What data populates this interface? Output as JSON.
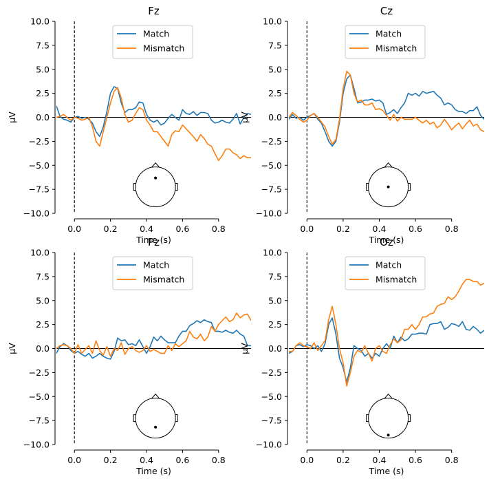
{
  "figure": {
    "name": "ERP comparison: Match vs Mismatch"
  },
  "colors": {
    "match": "#1f77b4",
    "mismatch": "#ff7f0e",
    "axis": "#000000",
    "legend_border": "#cccccc"
  },
  "chart_data": [
    {
      "type": "line",
      "title": "Fz",
      "xlabel": "Time (s)",
      "ylabel": "µV",
      "xlim": [
        -0.1,
        0.98
      ],
      "ylim": [
        -10,
        10
      ],
      "xticks": [
        0.0,
        0.2,
        0.4,
        0.6,
        0.8
      ],
      "xtick_labels": [
        "0.0",
        "0.2",
        "0.4",
        "0.6",
        "0.8"
      ],
      "yticks": [
        10,
        7.5,
        5,
        2.5,
        0,
        -2.5,
        -5,
        -7.5,
        -10
      ],
      "ytick_labels": [
        "10.0",
        "7.5",
        "5.0",
        "2.5",
        "0.0",
        "−2.5",
        "−5.0",
        "−7.5",
        "−10.0"
      ],
      "legend": {
        "placement": "top-center"
      },
      "sensor": {
        "x": 0.0,
        "y": 0.45
      },
      "x": [
        -0.1,
        -0.08,
        -0.06,
        -0.04,
        -0.02,
        0.0,
        0.02,
        0.04,
        0.06,
        0.08,
        0.1,
        0.12,
        0.14,
        0.16,
        0.18,
        0.2,
        0.22,
        0.24,
        0.26,
        0.28,
        0.3,
        0.32,
        0.34,
        0.36,
        0.38,
        0.4,
        0.42,
        0.44,
        0.46,
        0.48,
        0.5,
        0.52,
        0.54,
        0.56,
        0.58,
        0.6,
        0.62,
        0.64,
        0.66,
        0.68,
        0.7,
        0.72,
        0.74,
        0.76,
        0.78,
        0.8,
        0.82,
        0.84,
        0.86,
        0.88,
        0.9,
        0.92,
        0.94,
        0.96,
        0.98
      ],
      "series": [
        {
          "name": "Match",
          "values": [
            1.2,
            0.1,
            -0.2,
            -0.3,
            -0.5,
            0.0,
            0.1,
            -0.1,
            0.0,
            -0.2,
            -0.6,
            -1.5,
            -2.0,
            -1.0,
            0.6,
            2.5,
            3.2,
            3.0,
            1.5,
            0.5,
            0.8,
            0.8,
            1.0,
            1.6,
            1.5,
            0.3,
            -0.3,
            -0.5,
            -0.3,
            -0.8,
            -0.6,
            -0.1,
            0.3,
            0.0,
            -0.3,
            0.8,
            0.4,
            0.3,
            0.6,
            0.2,
            0.5,
            0.5,
            0.4,
            -0.3,
            -0.6,
            -0.5,
            -0.3,
            -0.5,
            -0.6,
            -0.2,
            0.4,
            -0.7,
            0.0,
            0.4,
            0.3
          ]
        },
        {
          "name": "Mismatch",
          "values": [
            0.0,
            0.1,
            0.3,
            0.0,
            -0.3,
            0.0,
            -0.1,
            -0.3,
            -0.2,
            0.0,
            -1.0,
            -2.5,
            -3.0,
            -1.5,
            0.0,
            1.5,
            2.7,
            3.1,
            2.0,
            0.3,
            -0.5,
            -0.3,
            0.4,
            1.0,
            0.8,
            -0.3,
            -0.8,
            -1.5,
            -1.5,
            -2.0,
            -2.5,
            -3.0,
            -1.8,
            -1.4,
            -1.5,
            -0.8,
            -1.2,
            -1.6,
            -2.0,
            -2.5,
            -1.8,
            -2.2,
            -2.8,
            -3.0,
            -3.8,
            -4.5,
            -4.0,
            -3.3,
            -3.3,
            -3.7,
            -3.9,
            -4.3,
            -4.0,
            -4.2,
            -4.2
          ]
        }
      ]
    },
    {
      "type": "line",
      "title": "Cz",
      "xlabel": "Time (s)",
      "ylabel": "µV",
      "xlim": [
        -0.1,
        0.98
      ],
      "ylim": [
        -10,
        10
      ],
      "xticks": [
        0.0,
        0.2,
        0.4,
        0.6,
        0.8
      ],
      "xtick_labels": [
        "0.0",
        "0.2",
        "0.4",
        "0.6",
        "0.8"
      ],
      "yticks": [
        10,
        7.5,
        5,
        2.5,
        0,
        -2.5,
        -5,
        -7.5,
        -10
      ],
      "ytick_labels": [
        "10.0",
        "7.5",
        "5.0",
        "2.5",
        "0.0",
        "−2.5",
        "−5.0",
        "−7.5",
        "−10.0"
      ],
      "legend": {
        "placement": "top-center"
      },
      "sensor": {
        "x": 0.0,
        "y": 0.0
      },
      "x": [
        -0.1,
        -0.08,
        -0.06,
        -0.04,
        -0.02,
        0.0,
        0.02,
        0.04,
        0.06,
        0.08,
        0.1,
        0.12,
        0.14,
        0.16,
        0.18,
        0.2,
        0.22,
        0.24,
        0.26,
        0.28,
        0.3,
        0.32,
        0.34,
        0.36,
        0.38,
        0.4,
        0.42,
        0.44,
        0.46,
        0.48,
        0.5,
        0.52,
        0.54,
        0.56,
        0.58,
        0.6,
        0.62,
        0.64,
        0.66,
        0.68,
        0.7,
        0.72,
        0.74,
        0.76,
        0.78,
        0.8,
        0.82,
        0.84,
        0.86,
        0.88,
        0.9,
        0.92,
        0.94,
        0.96,
        0.98
      ],
      "series": [
        {
          "name": "Match",
          "values": [
            -0.2,
            0.3,
            -0.1,
            0.0,
            -0.3,
            0.0,
            0.2,
            0.4,
            -0.2,
            -0.6,
            -1.5,
            -2.5,
            -3.0,
            -2.5,
            -0.5,
            2.5,
            4.0,
            4.4,
            3.0,
            1.5,
            1.6,
            1.8,
            1.8,
            1.9,
            1.7,
            1.8,
            1.5,
            0.3,
            0.5,
            0.8,
            0.4,
            1.0,
            1.5,
            2.5,
            2.3,
            2.5,
            2.2,
            2.7,
            2.5,
            2.6,
            2.7,
            2.3,
            2.0,
            1.3,
            1.5,
            1.3,
            0.8,
            0.6,
            0.6,
            0.4,
            0.7,
            0.7,
            1.1,
            0.2,
            -0.2
          ]
        },
        {
          "name": "Mismatch",
          "values": [
            0.0,
            0.5,
            0.2,
            -0.2,
            -0.5,
            -0.3,
            0.2,
            0.4,
            0.0,
            -0.5,
            -1.0,
            -2.0,
            -2.8,
            -2.3,
            -0.2,
            3.0,
            4.8,
            4.4,
            2.5,
            1.6,
            1.8,
            1.3,
            1.3,
            1.5,
            0.8,
            0.9,
            0.7,
            0.2,
            -0.3,
            0.3,
            -0.4,
            0.0,
            -0.2,
            -0.2,
            -0.2,
            0.0,
            -0.3,
            -0.6,
            -0.3,
            -0.7,
            -0.5,
            -1.1,
            -0.8,
            -0.2,
            -0.7,
            -1.3,
            -0.9,
            -0.6,
            -1.2,
            -0.7,
            -0.3,
            -0.9,
            -0.7,
            -1.3,
            -1.5
          ]
        }
      ]
    },
    {
      "type": "line",
      "title": "Pz",
      "xlabel": "Time (s)",
      "ylabel": "µV",
      "xlim": [
        -0.1,
        0.98
      ],
      "ylim": [
        -10,
        10
      ],
      "xticks": [
        0.0,
        0.2,
        0.4,
        0.6,
        0.8
      ],
      "xtick_labels": [
        "0.0",
        "0.2",
        "0.4",
        "0.6",
        "0.8"
      ],
      "yticks": [
        10,
        7.5,
        5,
        2.5,
        0,
        -2.5,
        -5,
        -7.5,
        -10
      ],
      "ytick_labels": [
        "10.0",
        "7.5",
        "5.0",
        "2.5",
        "0.0",
        "−2.5",
        "−5.0",
        "−7.5",
        "−10.0"
      ],
      "legend": {
        "placement": "top-center"
      },
      "sensor": {
        "x": 0.0,
        "y": -0.45
      },
      "x": [
        -0.1,
        -0.08,
        -0.06,
        -0.04,
        -0.02,
        0.0,
        0.02,
        0.04,
        0.06,
        0.08,
        0.1,
        0.12,
        0.14,
        0.16,
        0.18,
        0.2,
        0.22,
        0.24,
        0.26,
        0.28,
        0.3,
        0.32,
        0.34,
        0.36,
        0.38,
        0.4,
        0.42,
        0.44,
        0.46,
        0.48,
        0.5,
        0.52,
        0.54,
        0.56,
        0.58,
        0.6,
        0.62,
        0.64,
        0.66,
        0.68,
        0.7,
        0.72,
        0.74,
        0.76,
        0.78,
        0.8,
        0.82,
        0.84,
        0.86,
        0.88,
        0.9,
        0.92,
        0.94,
        0.96,
        0.98
      ],
      "series": [
        {
          "name": "Match",
          "values": [
            -0.5,
            0.2,
            0.5,
            0.3,
            -0.2,
            -0.5,
            -0.3,
            -0.6,
            -0.8,
            -0.5,
            -1.0,
            -0.8,
            -0.5,
            -0.8,
            -1.0,
            -1.1,
            -0.3,
            1.1,
            0.8,
            0.9,
            0.4,
            0.5,
            0.3,
            0.9,
            0.2,
            -0.5,
            0.2,
            1.2,
            0.8,
            1.3,
            0.9,
            0.6,
            0.6,
            0.6,
            1.3,
            1.8,
            1.8,
            2.4,
            2.6,
            2.9,
            2.7,
            3.0,
            2.8,
            2.7,
            1.8,
            1.8,
            1.7,
            1.9,
            1.7,
            1.6,
            1.9,
            1.5,
            1.3,
            0.3,
            0.3
          ]
        },
        {
          "name": "Mismatch",
          "values": [
            0.0,
            0.3,
            0.4,
            0.3,
            0.0,
            -0.5,
            0.4,
            -0.5,
            -0.1,
            0.3,
            -0.5,
            0.8,
            -0.2,
            -0.7,
            0.2,
            -0.8,
            0.0,
            -0.2,
            0.6,
            -0.6,
            0.0,
            0.2,
            -0.2,
            -0.4,
            -0.2,
            0.3,
            -0.3,
            -0.1,
            -0.3,
            -0.5,
            -0.5,
            0.3,
            -0.2,
            0.5,
            0.2,
            0.5,
            0.8,
            1.8,
            1.2,
            1.0,
            1.5,
            0.8,
            1.2,
            2.3,
            1.8,
            2.5,
            2.9,
            3.3,
            2.8,
            3.0,
            3.7,
            3.2,
            3.5,
            3.6,
            2.9
          ]
        }
      ]
    },
    {
      "type": "line",
      "title": "Oz",
      "xlabel": "Time (s)",
      "ylabel": "µV",
      "xlim": [
        -0.1,
        0.98
      ],
      "ylim": [
        -10,
        10
      ],
      "xticks": [
        0.0,
        0.2,
        0.4,
        0.6,
        0.8
      ],
      "xtick_labels": [
        "0.0",
        "0.2",
        "0.4",
        "0.6",
        "0.8"
      ],
      "yticks": [
        10,
        7.5,
        5,
        2.5,
        0,
        -2.5,
        -5,
        -7.5,
        -10
      ],
      "ytick_labels": [
        "10.0",
        "7.5",
        "5.0",
        "2.5",
        "0.0",
        "−2.5",
        "−5.0",
        "−7.5",
        "−10.0"
      ],
      "legend": {
        "placement": "top-center"
      },
      "sensor": {
        "x": 0.0,
        "y": -0.85
      },
      "x": [
        -0.1,
        -0.08,
        -0.06,
        -0.04,
        -0.02,
        0.0,
        0.02,
        0.04,
        0.06,
        0.08,
        0.1,
        0.12,
        0.14,
        0.16,
        0.18,
        0.2,
        0.22,
        0.24,
        0.26,
        0.28,
        0.3,
        0.32,
        0.34,
        0.36,
        0.38,
        0.4,
        0.42,
        0.44,
        0.46,
        0.48,
        0.5,
        0.52,
        0.54,
        0.56,
        0.58,
        0.6,
        0.62,
        0.64,
        0.66,
        0.68,
        0.7,
        0.72,
        0.74,
        0.76,
        0.78,
        0.8,
        0.82,
        0.84,
        0.86,
        0.88,
        0.9,
        0.92,
        0.94,
        0.96,
        0.98
      ],
      "series": [
        {
          "name": "Match",
          "values": [
            -0.5,
            -0.3,
            0.3,
            0.4,
            0.2,
            0.4,
            0.3,
            0.0,
            0.3,
            -0.3,
            0.5,
            2.5,
            3.2,
            1.5,
            -1.0,
            -2.0,
            -3.5,
            -2.0,
            0.3,
            0.0,
            -0.2,
            -0.8,
            -0.5,
            -1.0,
            -0.5,
            -0.8,
            0.0,
            0.5,
            0.0,
            1.3,
            0.6,
            1.2,
            0.8,
            1.0,
            1.5,
            1.5,
            1.6,
            1.6,
            1.5,
            2.5,
            2.6,
            2.6,
            2.8,
            2.0,
            2.2,
            2.6,
            2.5,
            2.3,
            2.8,
            2.0,
            1.9,
            2.3,
            2.0,
            1.6,
            1.9
          ]
        },
        {
          "name": "Mismatch",
          "values": [
            -0.3,
            -0.3,
            0.3,
            0.6,
            0.3,
            0.2,
            0.0,
            0.6,
            -0.2,
            0.3,
            0.8,
            3.0,
            4.4,
            2.5,
            0.0,
            -1.5,
            -3.9,
            -2.5,
            -0.8,
            -0.2,
            -0.4,
            0.3,
            -0.5,
            -1.3,
            0.0,
            0.3,
            -0.3,
            -0.5,
            0.4,
            1.0,
            0.6,
            0.9,
            2.0,
            2.0,
            2.5,
            2.0,
            2.5,
            3.3,
            3.3,
            3.6,
            3.7,
            4.4,
            4.6,
            4.7,
            5.4,
            5.1,
            5.4,
            6.0,
            6.7,
            7.2,
            7.2,
            7.0,
            7.0,
            6.6,
            6.8
          ]
        }
      ]
    }
  ]
}
